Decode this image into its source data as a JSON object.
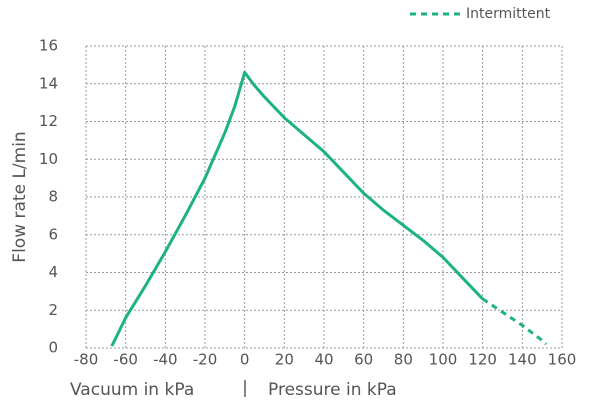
{
  "chart_data": {
    "type": "line",
    "y_label": "Flow rate L/min",
    "x_labels": [
      "Vacuum in kPa",
      "|",
      "Pressure in kPa"
    ],
    "series": [
      {
        "color": "#1db37e",
        "dash": false,
        "x": [
          -67,
          -60,
          -50,
          -40,
          -30,
          -20,
          -10,
          -5,
          0,
          5,
          10,
          20,
          30,
          40,
          50,
          60,
          70,
          80,
          90,
          100,
          110,
          120
        ],
        "values": [
          0.1,
          1.6,
          3.3,
          5.1,
          7.0,
          9.0,
          11.4,
          12.8,
          14.6,
          13.9,
          13.3,
          12.2,
          11.3,
          10.4,
          9.3,
          8.2,
          7.3,
          6.5,
          5.7,
          4.8,
          3.7,
          2.6
        ]
      },
      {
        "name": "Intermittent",
        "color": "#1db37e",
        "dash": true,
        "x": [
          120,
          130,
          140,
          150,
          152
        ],
        "values": [
          2.6,
          1.9,
          1.2,
          0.4,
          0.2
        ]
      }
    ],
    "xlim": [
      -80,
      160
    ],
    "xticks": [
      -80,
      -60,
      -40,
      -20,
      0,
      20,
      40,
      60,
      80,
      100,
      120,
      140,
      160
    ],
    "ylim": [
      0,
      16
    ],
    "yticks": [
      0,
      2,
      4,
      6,
      8,
      10,
      12,
      14,
      16
    ],
    "grid": true,
    "legend": "top-right"
  }
}
